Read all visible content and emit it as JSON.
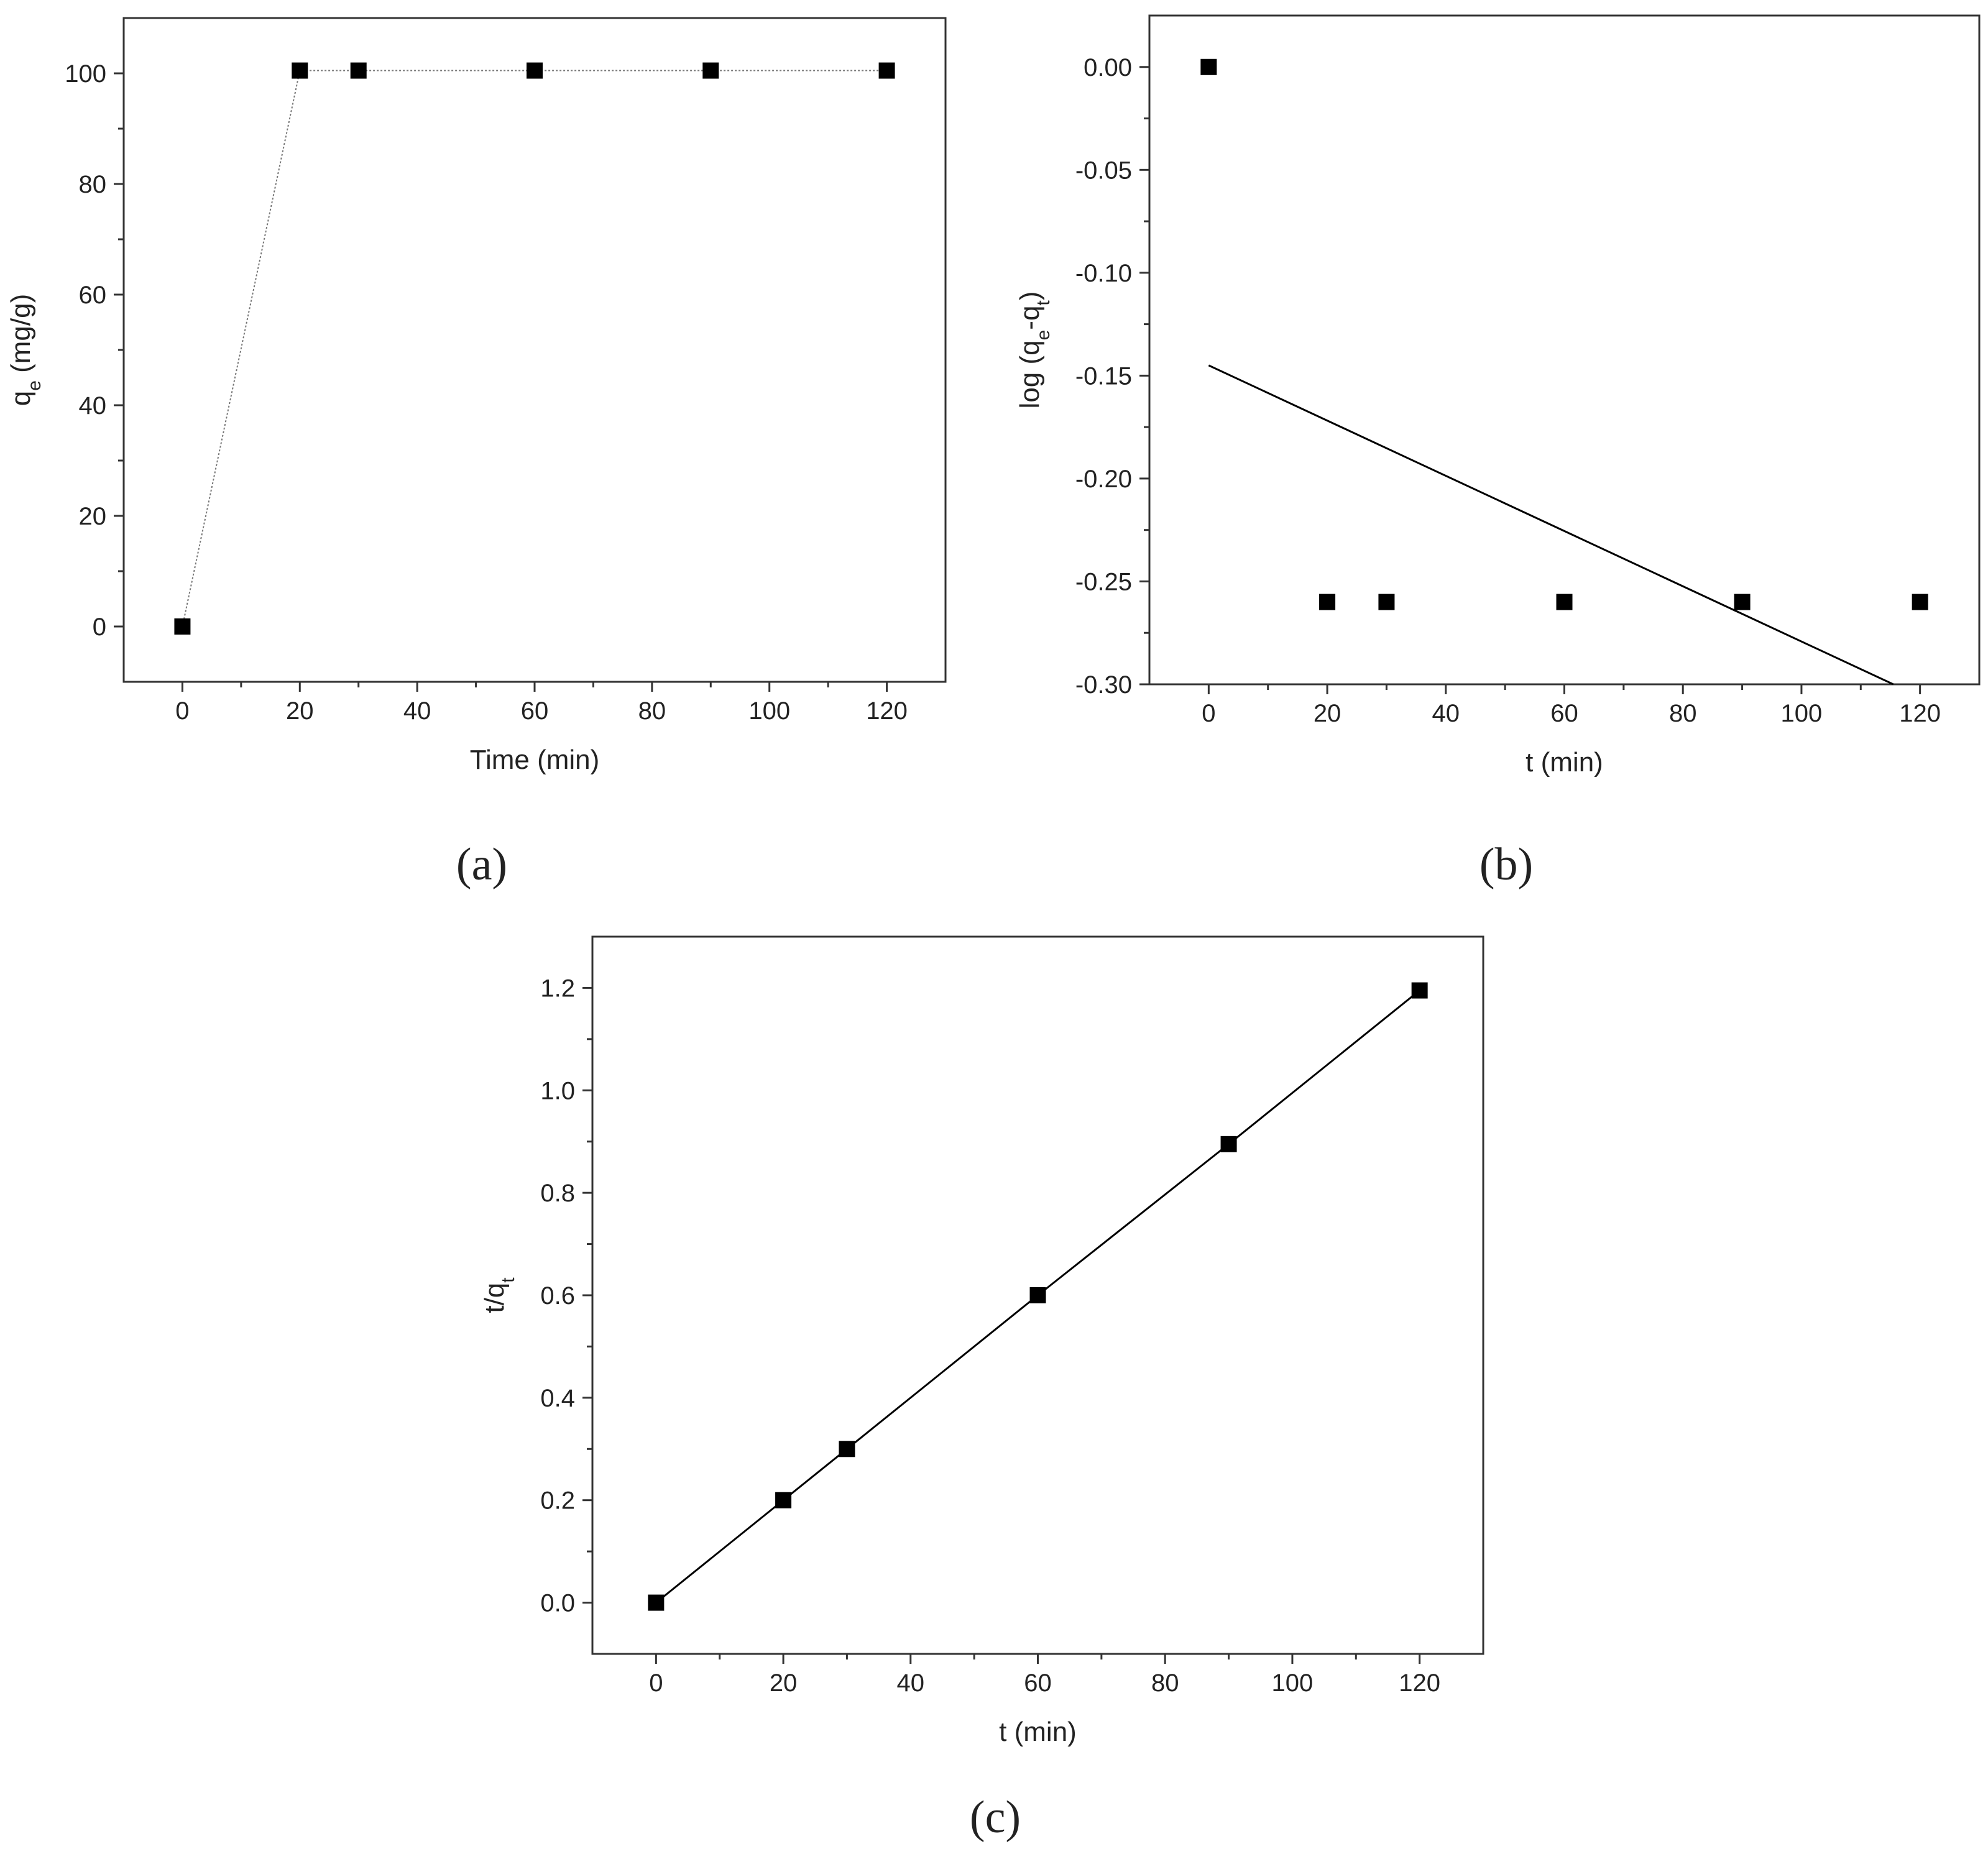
{
  "chart_data": [
    {
      "type": "scatter",
      "caption": "(a)",
      "xlabel": "Time (min)",
      "ylabel": [
        "q",
        "e",
        " (mg/g)"
      ],
      "xlim": [
        -10,
        130
      ],
      "xticks": [
        0,
        20,
        40,
        60,
        80,
        100,
        120
      ],
      "ylim": [
        -10,
        110
      ],
      "yticks": [
        0,
        20,
        40,
        60,
        80,
        100
      ],
      "series": [
        {
          "color": "#000000",
          "line": "dotted",
          "marker": true,
          "x": [
            0,
            20,
            30,
            60,
            90,
            120
          ],
          "values": [
            0,
            100.5,
            100.5,
            100.5,
            100.5,
            100.5
          ]
        }
      ]
    },
    {
      "type": "scatter",
      "caption": "(b)",
      "xlabel": "t (min)",
      "ylabel": [
        "log (q",
        "e",
        "-q",
        "t",
        ")"
      ],
      "xlim": [
        -10,
        130
      ],
      "xticks": [
        0,
        20,
        40,
        60,
        80,
        100,
        120
      ],
      "ylim": [
        -0.3,
        0.025
      ],
      "yticks": [
        {
          "value": 0,
          "label": "0.00"
        },
        -0.05,
        {
          "value": -0.1,
          "label": "-0.10"
        },
        -0.15,
        {
          "value": -0.2,
          "label": "-0.20"
        },
        -0.25,
        {
          "value": -0.3,
          "label": "-0.30"
        }
      ],
      "series": [
        {
          "color": "#000000",
          "line": "none",
          "marker": true,
          "x": [
            0,
            20,
            30,
            60,
            90,
            120
          ],
          "values": [
            0,
            -0.26,
            -0.26,
            -0.26,
            -0.26,
            -0.26
          ]
        },
        {
          "color": "#000000",
          "line": "solid",
          "marker": false,
          "x": [
            0,
            115.5
          ],
          "values": [
            -0.145,
            -0.3
          ]
        }
      ]
    },
    {
      "type": "scatter",
      "caption": "(c)",
      "xlabel": "t (min)",
      "ylabel": [
        "t/q",
        "t"
      ],
      "xlim": [
        -10,
        130
      ],
      "xticks": [
        0,
        20,
        40,
        60,
        80,
        100,
        120
      ],
      "ylim": [
        -0.1,
        1.3
      ],
      "yticks": [
        {
          "value": 0,
          "label": "0.0"
        },
        0.2,
        0.4,
        0.6,
        0.8,
        {
          "value": 1,
          "label": "1.0"
        },
        1.2
      ],
      "series": [
        {
          "color": "#000000",
          "line": "solid",
          "marker": true,
          "x": [
            0,
            20,
            30,
            60,
            90,
            120
          ],
          "values": [
            0,
            0.2,
            0.3,
            0.6,
            0.895,
            1.195
          ]
        }
      ]
    }
  ]
}
